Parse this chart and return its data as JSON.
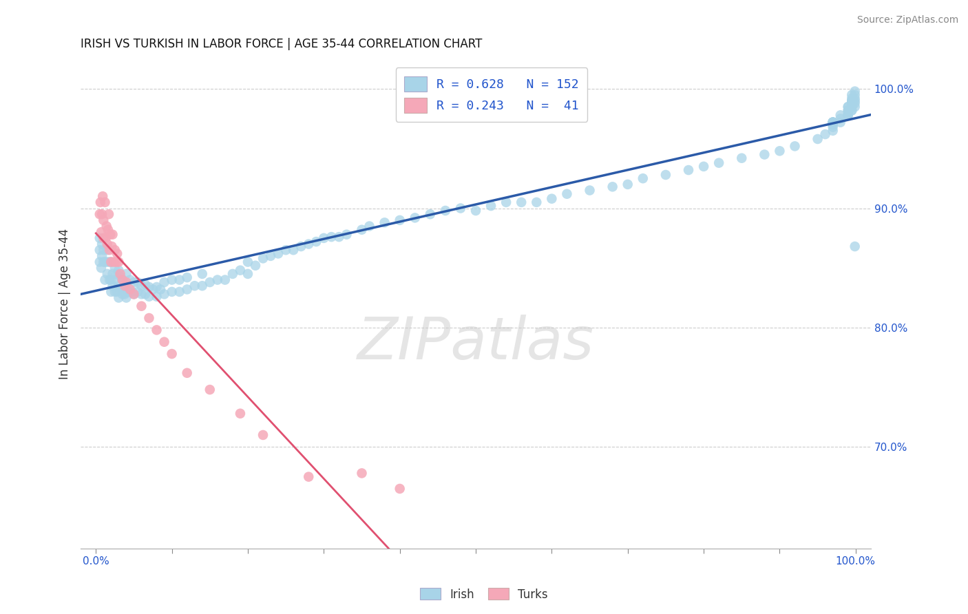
{
  "title": "IRISH VS TURKISH IN LABOR FORCE | AGE 35-44 CORRELATION CHART",
  "source": "Source: ZipAtlas.com",
  "ylabel": "In Labor Force | Age 35-44",
  "xlim": [
    -0.02,
    1.02
  ],
  "ylim": [
    0.615,
    1.025
  ],
  "x_tick_positions": [
    0.0,
    0.1,
    0.2,
    0.3,
    0.4,
    0.5,
    0.6,
    0.7,
    0.8,
    0.9,
    1.0
  ],
  "x_tick_labels_show": [
    "0.0%",
    "",
    "",
    "",
    "",
    "",
    "",
    "",
    "",
    "",
    "100.0%"
  ],
  "y_tick_values": [
    0.7,
    0.8,
    0.9,
    1.0
  ],
  "watermark": "ZIPatlas",
  "legend_line1": "R = 0.628   N = 152",
  "legend_line2": "R = 0.243   N =  41",
  "irish_color": "#a8d4e8",
  "turks_color": "#f5a8b8",
  "irish_line_color": "#2b5aa8",
  "turks_line_color": "#e05070",
  "background_color": "#ffffff",
  "irish_x": [
    0.005,
    0.005,
    0.005,
    0.007,
    0.008,
    0.008,
    0.01,
    0.01,
    0.012,
    0.012,
    0.015,
    0.015,
    0.015,
    0.018,
    0.018,
    0.02,
    0.02,
    0.02,
    0.022,
    0.022,
    0.025,
    0.025,
    0.025,
    0.028,
    0.028,
    0.03,
    0.03,
    0.03,
    0.032,
    0.033,
    0.035,
    0.035,
    0.038,
    0.038,
    0.04,
    0.04,
    0.04,
    0.042,
    0.045,
    0.045,
    0.048,
    0.05,
    0.05,
    0.055,
    0.055,
    0.06,
    0.06,
    0.065,
    0.065,
    0.07,
    0.07,
    0.075,
    0.08,
    0.08,
    0.085,
    0.09,
    0.09,
    0.1,
    0.1,
    0.11,
    0.11,
    0.12,
    0.12,
    0.13,
    0.14,
    0.14,
    0.15,
    0.16,
    0.17,
    0.18,
    0.19,
    0.2,
    0.2,
    0.21,
    0.22,
    0.23,
    0.24,
    0.25,
    0.26,
    0.27,
    0.28,
    0.29,
    0.3,
    0.31,
    0.32,
    0.33,
    0.35,
    0.36,
    0.38,
    0.4,
    0.42,
    0.44,
    0.46,
    0.48,
    0.5,
    0.52,
    0.54,
    0.56,
    0.58,
    0.6,
    0.62,
    0.65,
    0.68,
    0.7,
    0.72,
    0.75,
    0.78,
    0.8,
    0.82,
    0.85,
    0.88,
    0.9,
    0.92,
    0.95,
    0.96,
    0.97,
    0.97,
    0.97,
    0.97,
    0.97,
    0.97,
    0.97,
    0.97,
    0.97,
    0.97,
    0.98,
    0.98,
    0.98,
    0.99,
    0.99,
    0.99,
    0.99,
    0.99,
    0.99,
    0.99,
    0.995,
    0.995,
    0.995,
    0.995,
    0.995,
    0.995,
    0.995,
    0.995,
    0.995,
    0.995,
    0.999,
    0.999,
    0.999,
    0.999,
    0.999,
    0.999,
    0.999
  ],
  "irish_y": [
    0.855,
    0.865,
    0.875,
    0.85,
    0.86,
    0.87,
    0.855,
    0.865,
    0.84,
    0.855,
    0.845,
    0.855,
    0.865,
    0.84,
    0.855,
    0.83,
    0.84,
    0.855,
    0.835,
    0.845,
    0.83,
    0.84,
    0.85,
    0.83,
    0.845,
    0.825,
    0.835,
    0.848,
    0.832,
    0.842,
    0.828,
    0.84,
    0.828,
    0.838,
    0.825,
    0.835,
    0.845,
    0.83,
    0.83,
    0.84,
    0.83,
    0.828,
    0.838,
    0.83,
    0.838,
    0.828,
    0.835,
    0.828,
    0.836,
    0.826,
    0.834,
    0.832,
    0.826,
    0.834,
    0.832,
    0.828,
    0.838,
    0.83,
    0.84,
    0.83,
    0.84,
    0.832,
    0.842,
    0.835,
    0.835,
    0.845,
    0.838,
    0.84,
    0.84,
    0.845,
    0.848,
    0.845,
    0.855,
    0.852,
    0.858,
    0.86,
    0.862,
    0.865,
    0.865,
    0.868,
    0.87,
    0.872,
    0.875,
    0.876,
    0.876,
    0.878,
    0.882,
    0.885,
    0.888,
    0.89,
    0.892,
    0.895,
    0.898,
    0.9,
    0.898,
    0.902,
    0.905,
    0.905,
    0.905,
    0.908,
    0.912,
    0.915,
    0.918,
    0.92,
    0.925,
    0.928,
    0.932,
    0.935,
    0.938,
    0.942,
    0.945,
    0.948,
    0.952,
    0.958,
    0.962,
    0.965,
    0.968,
    0.97,
    0.972,
    0.972,
    0.972,
    0.972,
    0.972,
    0.972,
    0.972,
    0.972,
    0.975,
    0.978,
    0.978,
    0.978,
    0.98,
    0.982,
    0.982,
    0.985,
    0.985,
    0.982,
    0.982,
    0.985,
    0.985,
    0.988,
    0.988,
    0.99,
    0.99,
    0.992,
    0.995,
    0.985,
    0.988,
    0.99,
    0.992,
    0.995,
    0.998,
    0.868
  ],
  "turks_x": [
    0.005,
    0.006,
    0.007,
    0.008,
    0.009,
    0.01,
    0.01,
    0.012,
    0.013,
    0.014,
    0.015,
    0.016,
    0.017,
    0.018,
    0.019,
    0.02,
    0.021,
    0.022,
    0.024,
    0.025,
    0.027,
    0.028,
    0.03,
    0.032,
    0.035,
    0.038,
    0.04,
    0.045,
    0.05,
    0.06,
    0.07,
    0.08,
    0.09,
    0.1,
    0.12,
    0.15,
    0.19,
    0.22,
    0.28,
    0.35,
    0.4
  ],
  "turks_y": [
    0.895,
    0.905,
    0.88,
    0.895,
    0.91,
    0.875,
    0.89,
    0.905,
    0.875,
    0.885,
    0.87,
    0.882,
    0.895,
    0.865,
    0.878,
    0.855,
    0.868,
    0.878,
    0.855,
    0.865,
    0.855,
    0.862,
    0.855,
    0.845,
    0.84,
    0.835,
    0.838,
    0.832,
    0.828,
    0.818,
    0.808,
    0.798,
    0.788,
    0.778,
    0.762,
    0.748,
    0.728,
    0.71,
    0.675,
    0.678,
    0.665
  ]
}
